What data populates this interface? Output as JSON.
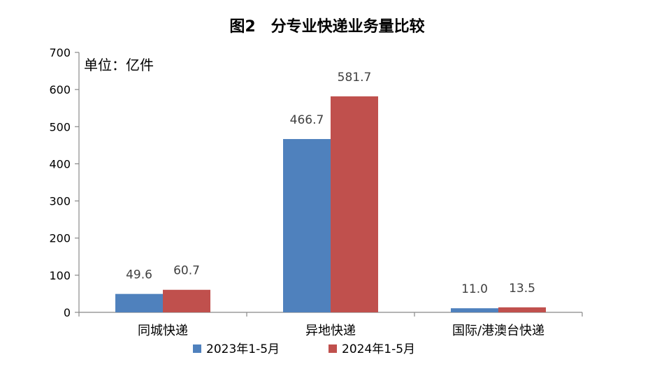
{
  "chart_data": {
    "type": "bar",
    "title": "图2　分专业快递业务量比较",
    "unit": "单位：亿件",
    "categories": [
      "同城快递",
      "异地快递",
      "国际/港澳台快递"
    ],
    "series": [
      {
        "name": "2023年1-5月",
        "values": [
          49.6,
          466.7,
          11.0
        ],
        "labels": [
          "49.6",
          "466.7",
          "11.0"
        ],
        "color": "#4F81BD"
      },
      {
        "name": "2024年1-5月",
        "values": [
          60.7,
          581.7,
          13.5
        ],
        "labels": [
          "60.7",
          "581.7",
          "13.5"
        ],
        "color": "#C0504D"
      }
    ],
    "ylim": [
      0,
      700
    ],
    "yticks": [
      0,
      100,
      200,
      300,
      400,
      500,
      600,
      700
    ],
    "grid": false,
    "legend": "bottom"
  }
}
